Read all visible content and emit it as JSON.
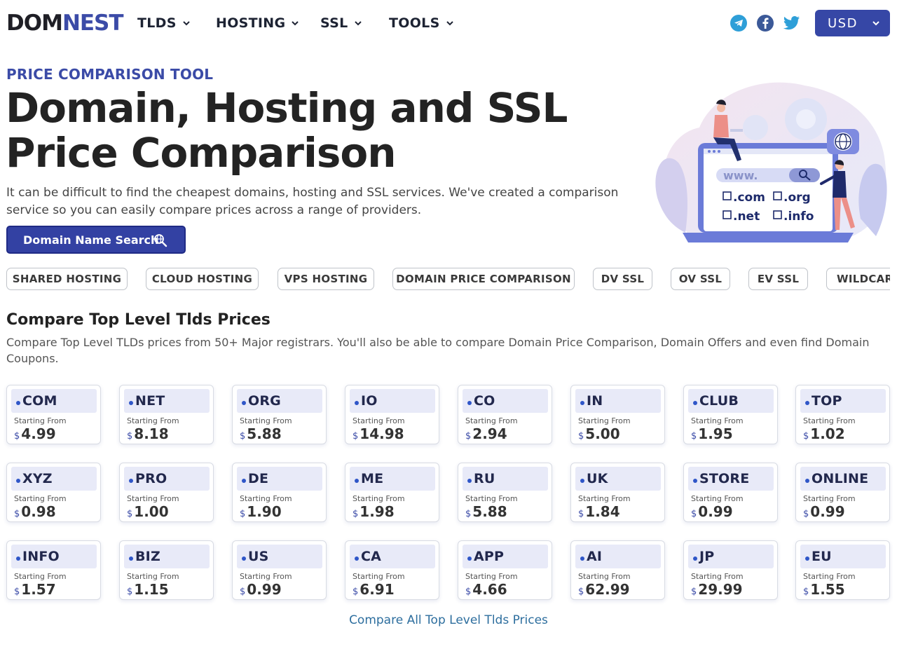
{
  "header": {
    "logo_part1": "DOM",
    "logo_part2": "NEST",
    "nav": [
      {
        "label": "TLDS"
      },
      {
        "label": "HOSTING"
      },
      {
        "label": "SSL"
      },
      {
        "label": "TOOLS"
      }
    ],
    "social": [
      "telegram-icon",
      "facebook-icon",
      "twitter-icon"
    ],
    "currency": "USD"
  },
  "hero": {
    "eyebrow": "PRICE COMPARISON TOOL",
    "title_line1": "Domain, Hosting and SSL",
    "title_line2": "Price Comparison",
    "description": "It can be difficult to find the cheapest domains, hosting and SSL services. We've created a comparison service so you can easily compare prices across a range of providers.",
    "search_button": "Domain Name Search",
    "illustration": {
      "www": "www.",
      "options": [
        ".com",
        ".org",
        ".net",
        ".info"
      ]
    }
  },
  "categories": [
    "SHARED HOSTING",
    "CLOUD HOSTING",
    "VPS HOSTING",
    "DOMAIN PRICE COMPARISON",
    "DV SSL",
    "OV SSL",
    "EV SSL",
    "WILDCARD SSL"
  ],
  "section": {
    "title": "Compare Top Level Tlds Prices",
    "description": "Compare Top Level TLDs prices from 50+ Major registrars. You'll also be able to compare Domain Price Comparison, Domain Offers and even find Domain Coupons."
  },
  "starting_label": "Starting From",
  "currency_symbol": "$",
  "tlds": [
    {
      "tld": "COM",
      "price": "4.99"
    },
    {
      "tld": "NET",
      "price": "8.18"
    },
    {
      "tld": "ORG",
      "price": "5.88"
    },
    {
      "tld": "IO",
      "price": "14.98"
    },
    {
      "tld": "CO",
      "price": "2.94"
    },
    {
      "tld": "IN",
      "price": "5.00"
    },
    {
      "tld": "CLUB",
      "price": "1.95"
    },
    {
      "tld": "TOP",
      "price": "1.02"
    },
    {
      "tld": "XYZ",
      "price": "0.98"
    },
    {
      "tld": "PRO",
      "price": "1.00"
    },
    {
      "tld": "DE",
      "price": "1.90"
    },
    {
      "tld": "ME",
      "price": "1.98"
    },
    {
      "tld": "RU",
      "price": "5.88"
    },
    {
      "tld": "UK",
      "price": "1.84"
    },
    {
      "tld": "STORE",
      "price": "0.99"
    },
    {
      "tld": "ONLINE",
      "price": "0.99"
    },
    {
      "tld": "INFO",
      "price": "1.57"
    },
    {
      "tld": "BIZ",
      "price": "1.15"
    },
    {
      "tld": "US",
      "price": "0.99"
    },
    {
      "tld": "CA",
      "price": "6.91"
    },
    {
      "tld": "APP",
      "price": "4.66"
    },
    {
      "tld": "AI",
      "price": "62.99"
    },
    {
      "tld": "JP",
      "price": "29.99"
    },
    {
      "tld": "EU",
      "price": "1.55"
    }
  ],
  "compare_link": "Compare All Top Level Tlds Prices",
  "colors": {
    "accent": "#3647a6",
    "brand_blue": "#3b4ba7",
    "card_header": "#e8eaf8",
    "link": "#2d6e9e"
  }
}
